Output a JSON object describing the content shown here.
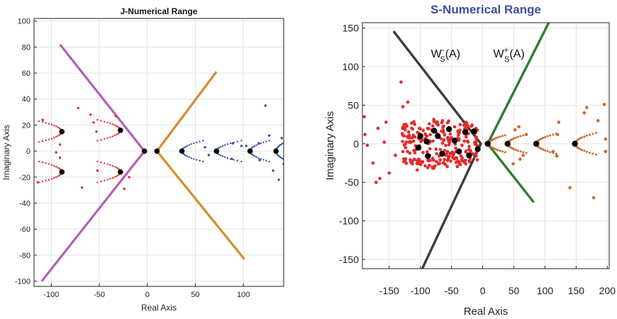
{
  "chart_data": [
    {
      "type": "scatter",
      "title": "J-Numerical Range",
      "xlabel": "Real Axis",
      "ylabel": "Imaginary Axis",
      "xlim": [
        -118,
        142
      ],
      "ylim": [
        -104,
        102
      ],
      "x_ticks": [
        -100,
        -50,
        0,
        50,
        100
      ],
      "x_tick_labels": [
        "-100",
        "-50",
        "0",
        "50",
        "100"
      ],
      "y_ticks": [
        -100,
        -80,
        -60,
        -40,
        -20,
        0,
        20,
        40,
        60,
        80,
        100
      ],
      "y_tick_labels": [
        "-100",
        "-80",
        "-60",
        "-40",
        "-20",
        "0",
        "20",
        "40",
        "60",
        "80",
        "100"
      ],
      "grid": true,
      "colors": {
        "magenta": "#b35fb4",
        "orange": "#d98a2c",
        "red": "#e12b2b",
        "blue": "#3b4ea0",
        "black": "#000000"
      },
      "series": [
        {
          "kind": "line",
          "color": "magenta",
          "points": [
            [
              -91,
              82
            ],
            [
              -3,
              0
            ],
            [
              -110,
              -100
            ]
          ]
        },
        {
          "kind": "line",
          "color": "orange",
          "points": [
            [
              72,
              61
            ],
            [
              10,
              0
            ],
            [
              101,
              -83
            ]
          ]
        },
        {
          "kind": "arcs",
          "color": "red",
          "arcs": [
            {
              "cx": -89,
              "cy": 15,
              "dir": -1,
              "len": 24,
              "spread": 8
            },
            {
              "cx": -89,
              "cy": -16,
              "dir": -1,
              "len": 24,
              "spread": 8
            },
            {
              "cx": -28,
              "cy": 16,
              "dir": -1,
              "len": 24,
              "spread": 8
            },
            {
              "cx": -28,
              "cy": -16,
              "dir": -1,
              "len": 24,
              "spread": 8
            }
          ]
        },
        {
          "kind": "scatter",
          "color": "red",
          "points": [
            [
              -72,
              33
            ],
            [
              -59,
              28
            ],
            [
              -56,
              22
            ],
            [
              -53,
              15
            ],
            [
              -68,
              -28
            ],
            [
              -52,
              -15
            ],
            [
              -91,
              5
            ],
            [
              -91,
              -5
            ],
            [
              -95,
              -1
            ],
            [
              -109,
              24
            ],
            [
              -114,
              -24
            ],
            [
              -33,
              27
            ],
            [
              -24,
              -29
            ],
            [
              -19,
              -20
            ]
          ]
        },
        {
          "kind": "arcs",
          "color": "blue",
          "arcs": [
            {
              "cx": 36,
              "cy": 0,
              "dir": 1,
              "len": 22,
              "spread": 8
            },
            {
              "cx": 72,
              "cy": 0,
              "dir": 1,
              "len": 26,
              "spread": 8
            },
            {
              "cx": 107,
              "cy": 0,
              "dir": 1,
              "len": 20,
              "spread": 8
            },
            {
              "cx": 134,
              "cy": 0,
              "dir": 1,
              "len": 10,
              "spread": 7
            }
          ]
        },
        {
          "kind": "scatter",
          "color": "blue",
          "points": [
            [
              123,
              35
            ],
            [
              137,
              -22
            ],
            [
              116,
              6
            ],
            [
              117,
              -7
            ],
            [
              89,
              6
            ],
            [
              88,
              -6
            ],
            [
              98,
              4
            ],
            [
              127,
              12
            ],
            [
              131,
              -15
            ],
            [
              60,
              3
            ],
            [
              64,
              -3
            ],
            [
              103,
              4
            ],
            [
              140,
              10
            ],
            [
              142,
              -10
            ]
          ]
        },
        {
          "kind": "dots",
          "color": "black",
          "points": [
            [
              -89,
              15
            ],
            [
              -89,
              -16
            ],
            [
              -28,
              16
            ],
            [
              -28,
              -16
            ],
            [
              -3,
              0
            ],
            [
              10,
              0
            ],
            [
              36,
              0
            ],
            [
              72,
              0
            ],
            [
              107,
              0
            ],
            [
              134,
              0
            ]
          ]
        }
      ]
    },
    {
      "type": "scatter",
      "title": "S-Numerical Range",
      "xlabel": "Real Axis",
      "ylabel": "Imaginary Axis",
      "xlim": [
        -193,
        203
      ],
      "ylim": [
        -162,
        157
      ],
      "x_ticks": [
        -150,
        -100,
        -50,
        0,
        50,
        100,
        150,
        200
      ],
      "x_tick_labels": [
        "-150",
        "-100",
        "-50",
        "0",
        "50",
        "100",
        "150",
        "200"
      ],
      "y_ticks": [
        -150,
        -100,
        -50,
        0,
        50,
        100,
        150
      ],
      "y_tick_labels": [
        "-150",
        "-100",
        "-50",
        "0",
        "50",
        "100",
        "150"
      ],
      "grid": true,
      "annotations": [
        {
          "base": "W",
          "sub": "S",
          "sup": "-",
          "suffix": "(A)",
          "x": -83,
          "y": 112
        },
        {
          "base": "W",
          "sub": "S",
          "sup": "+",
          "suffix": "(A)",
          "x": 17,
          "y": 112
        }
      ],
      "colors": {
        "gray": "#3c3c3c",
        "green": "#2e7d32",
        "red": "#e12b2b",
        "orange": "#d2692c",
        "black": "#000000"
      },
      "series": [
        {
          "kind": "line",
          "color": "gray",
          "points": [
            [
              -143,
              146
            ],
            [
              -3,
              0
            ],
            [
              -97,
              -162
            ]
          ]
        },
        {
          "kind": "line",
          "color": "green",
          "points": [
            [
              106,
              157
            ],
            [
              8,
              0
            ],
            [
              82,
              -76
            ]
          ]
        },
        {
          "kind": "arcs",
          "color": "orange",
          "arcs": [
            {
              "cx": 10,
              "cy": 0,
              "dir": 1,
              "len": 26,
              "spread": 11
            },
            {
              "cx": 40,
              "cy": 0,
              "dir": 1,
              "len": 30,
              "spread": 12
            },
            {
              "cx": 86,
              "cy": 0,
              "dir": 1,
              "len": 32,
              "spread": 13
            },
            {
              "cx": 148,
              "cy": 0,
              "dir": 1,
              "len": 34,
              "spread": 14
            }
          ]
        },
        {
          "kind": "scatter",
          "color": "orange",
          "points": [
            [
              58,
              22
            ],
            [
              49,
              -26
            ],
            [
              70,
              12
            ],
            [
              65,
              -15
            ],
            [
              120,
              12
            ],
            [
              113,
              -10
            ],
            [
              163,
              40
            ],
            [
              167,
              47
            ],
            [
              195,
              51
            ],
            [
              185,
              30
            ],
            [
              178,
              -70
            ],
            [
              140,
              -57
            ],
            [
              122,
              28
            ],
            [
              119,
              -16
            ],
            [
              197,
              6
            ],
            [
              197,
              -10
            ],
            [
              60,
              -20
            ],
            [
              52,
              18
            ]
          ]
        },
        {
          "kind": "blob",
          "color": "red",
          "count": 260,
          "seed": 17,
          "xmin": -130,
          "xmax": -8,
          "half_width": 32
        },
        {
          "kind": "scatter",
          "color": "red",
          "points": [
            [
              -131,
              80
            ],
            [
              -128,
              48
            ],
            [
              -190,
              35
            ],
            [
              -189,
              12
            ],
            [
              -176,
              -25
            ],
            [
              -150,
              -38
            ],
            [
              -165,
              -45
            ],
            [
              -171,
              -50
            ],
            [
              -158,
              2
            ],
            [
              -185,
              -2
            ],
            [
              -168,
              20
            ],
            [
              -140,
              -15
            ],
            [
              -155,
              28
            ],
            [
              -120,
              54
            ],
            [
              -105,
              -34
            ]
          ]
        },
        {
          "kind": "dots",
          "color": "black",
          "points": [
            [
              -100,
              10
            ],
            [
              -90,
              3
            ],
            [
              -103,
              -5
            ],
            [
              -88,
              -16
            ],
            [
              -78,
              17
            ],
            [
              -72,
              10
            ],
            [
              -65,
              -13
            ],
            [
              -54,
              19
            ],
            [
              -45,
              4
            ],
            [
              -38,
              -10
            ],
            [
              -28,
              15
            ],
            [
              -22,
              -15
            ],
            [
              -14,
              16
            ],
            [
              -8,
              -7
            ],
            [
              8,
              0
            ],
            [
              40,
              0
            ],
            [
              86,
              0
            ],
            [
              148,
              0
            ]
          ]
        }
      ]
    }
  ]
}
